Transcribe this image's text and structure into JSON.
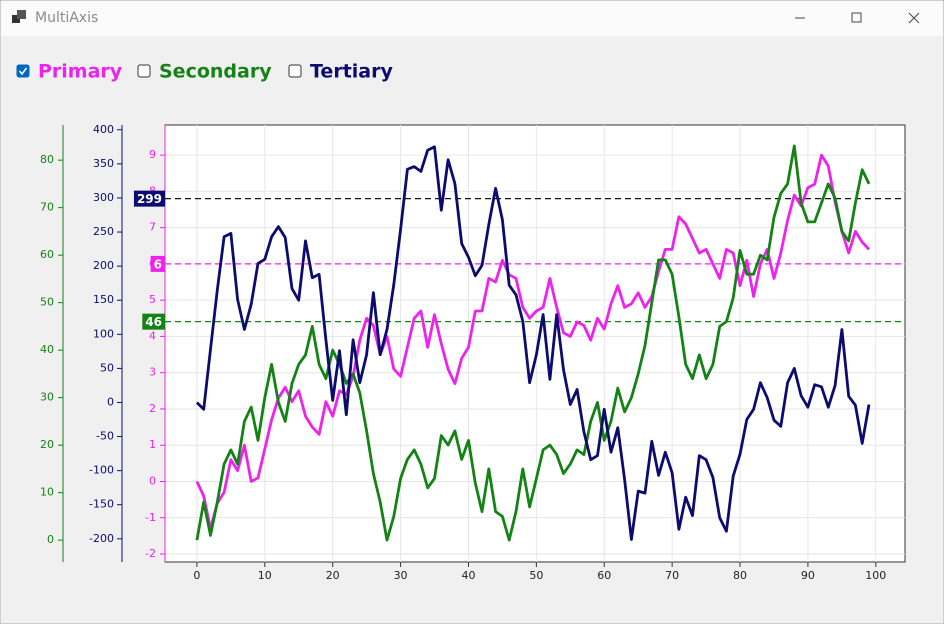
{
  "window": {
    "title": "MultiAxis"
  },
  "checkboxes": [
    {
      "label": "Primary",
      "checked": true,
      "color": "#ee22ee"
    },
    {
      "label": "Secondary",
      "checked": false,
      "color": "#148214"
    },
    {
      "label": "Tertiary",
      "checked": false,
      "color": "#0b0b70"
    }
  ],
  "chart_data": {
    "type": "line",
    "x": [
      0,
      1,
      2,
      3,
      4,
      5,
      6,
      7,
      8,
      9,
      10,
      11,
      12,
      13,
      14,
      15,
      16,
      17,
      18,
      19,
      20,
      21,
      22,
      23,
      24,
      25,
      26,
      27,
      28,
      29,
      30,
      31,
      32,
      33,
      34,
      35,
      36,
      37,
      38,
      39,
      40,
      41,
      42,
      43,
      44,
      45,
      46,
      47,
      48,
      49,
      50,
      51,
      52,
      53,
      54,
      55,
      56,
      57,
      58,
      59,
      60,
      61,
      62,
      63,
      64,
      65,
      66,
      67,
      68,
      69,
      70,
      71,
      72,
      73,
      74,
      75,
      76,
      77,
      78,
      79,
      80,
      81,
      82,
      83,
      84,
      85,
      86,
      87,
      88,
      89,
      90,
      91,
      92,
      93,
      94,
      95,
      96,
      97,
      98,
      99
    ],
    "series": [
      {
        "name": "Primary",
        "color": "#ee22ee",
        "axis": "y",
        "values": [
          0,
          -0.4,
          -1.3,
          -0.6,
          -0.3,
          0.6,
          0.3,
          1.0,
          0,
          0.1,
          0.9,
          1.7,
          2.3,
          2.6,
          2.2,
          2.5,
          1.8,
          1.5,
          1.3,
          2.2,
          1.8,
          2.5,
          2.4,
          2.9,
          3.9,
          4.5,
          4.3,
          3.5,
          4.0,
          3.1,
          2.9,
          3.7,
          4.5,
          4.7,
          3.7,
          4.6,
          3.8,
          3.1,
          2.7,
          3.4,
          3.7,
          4.7,
          4.7,
          5.6,
          5.5,
          6.1,
          5.7,
          5.6,
          4.8,
          4.5,
          4.7,
          4.8,
          5.6,
          4.8,
          4.1,
          4.0,
          4.4,
          4.3,
          3.9,
          4.5,
          4.2,
          4.9,
          5.4,
          4.8,
          4.9,
          5.2,
          4.8,
          5.1,
          5.8,
          6.4,
          6.4,
          7.3,
          7.1,
          6.7,
          6.3,
          6.4,
          6.0,
          5.6,
          6.4,
          6.3,
          5.4,
          6.1,
          5.1,
          6.0,
          6.4,
          5.6,
          6.3,
          7.2,
          7.9,
          7.6,
          8.1,
          8.2,
          9.0,
          8.7,
          7.7,
          6.9,
          6.3,
          6.9,
          6.6,
          6.4
        ]
      },
      {
        "name": "Secondary",
        "color": "#148214",
        "axis": "y2",
        "values": [
          0,
          8,
          1,
          8,
          16,
          19,
          16,
          25,
          28,
          21,
          30,
          37,
          29,
          25,
          33,
          37,
          39,
          45,
          37,
          34,
          40,
          37,
          33,
          35,
          31,
          23,
          14,
          8,
          0,
          5,
          13,
          17,
          19,
          16,
          11,
          13,
          22,
          20,
          23,
          17,
          21,
          12,
          6,
          15,
          6,
          5,
          0,
          6,
          15,
          7,
          13,
          19,
          20,
          18,
          14,
          16,
          19,
          18,
          25,
          29,
          21,
          25,
          32,
          27,
          30,
          35,
          41,
          50,
          59,
          59,
          56,
          47,
          37,
          34,
          39,
          34,
          37,
          45,
          46,
          51,
          61,
          56,
          56,
          60,
          59,
          68,
          73,
          75,
          83,
          71,
          67,
          67,
          71,
          75,
          72,
          65,
          63,
          71,
          78,
          75
        ]
      },
      {
        "name": "Tertiary",
        "color": "#0b0b70",
        "axis": "y3",
        "values": [
          0,
          -10,
          78,
          165,
          243,
          248,
          151,
          107,
          144,
          204,
          210,
          243,
          258,
          242,
          167,
          150,
          237,
          183,
          188,
          92,
          3,
          76,
          -18,
          92,
          29,
          70,
          161,
          70,
          107,
          173,
          254,
          342,
          346,
          339,
          370,
          375,
          282,
          356,
          321,
          233,
          213,
          186,
          201,
          261,
          314,
          268,
          172,
          158,
          119,
          29,
          70,
          129,
          34,
          129,
          48,
          -3,
          19,
          -43,
          -84,
          -78,
          -10,
          -73,
          -37,
          -113,
          -201,
          -130,
          -133,
          -57,
          -107,
          -73,
          -103,
          -186,
          -139,
          -166,
          -78,
          -84,
          -110,
          -169,
          -189,
          -108,
          -76,
          -25,
          -10,
          29,
          7,
          -26,
          -35,
          29,
          50,
          10,
          -7,
          26,
          23,
          -7,
          25,
          107,
          9,
          -4,
          -60,
          -3
        ]
      }
    ],
    "xlim": [
      -4.7,
      104.3
    ],
    "xticks": [
      0,
      10,
      20,
      30,
      40,
      50,
      60,
      70,
      80,
      90,
      100
    ],
    "ylim": [
      -2.22,
      9.83
    ],
    "yticks": [
      -2,
      -1,
      0,
      1,
      2,
      3,
      4,
      5,
      6,
      7,
      8,
      9
    ],
    "y2lim": [
      -4.6,
      87.4
    ],
    "y2ticks": [
      0,
      10,
      20,
      30,
      40,
      50,
      60,
      70,
      80
    ],
    "y3lim": [
      -234,
      407
    ],
    "y3ticks": [
      -200,
      -150,
      -100,
      -50,
      0,
      50,
      100,
      150,
      200,
      250,
      300,
      350,
      400
    ],
    "grid": true,
    "thresholds": [
      {
        "axis": "y3",
        "value": 299,
        "color": "#111111",
        "label_color": "#0b0b70"
      },
      {
        "axis": "y",
        "value": 6,
        "color": "#ee22ee",
        "label_color": "#ee22ee"
      },
      {
        "axis": "y2",
        "value": 46,
        "color": "#148214",
        "label_color": "#148214"
      }
    ]
  }
}
